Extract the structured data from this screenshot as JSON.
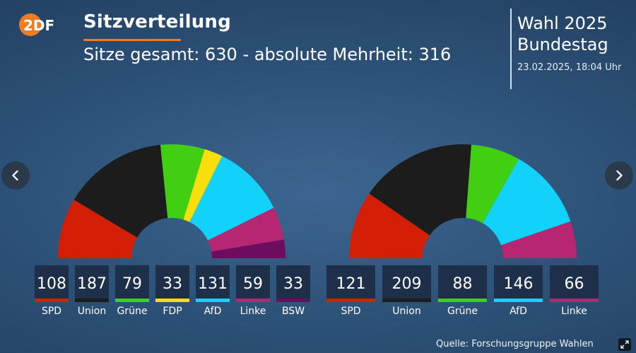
{
  "header": {
    "logo_text": "2DF",
    "title": "Sitzverteilung",
    "subtitle": "Sitze gesamt: 630 - absolute Mehrheit: 316",
    "election_line1": "Wahl 2025",
    "election_line2": "Bundestag",
    "timestamp": "23.02.2025, 18:04 Uhr"
  },
  "footer": {
    "source": "Quelle: Forschungsgruppe Wahlen"
  },
  "colors": {
    "SPD": "#d41f06",
    "Union": "#1c1c1c",
    "Grüne": "#41d011",
    "FDP": "#f8de0b",
    "AfD": "#12d2fa",
    "Linke": "#b62673",
    "BSW": "#6e0d5f",
    "accent": "#f07c22",
    "tile": "#1e3049"
  },
  "chart_data": [
    {
      "type": "pie",
      "variant": "parliament-semicircle",
      "total": 630,
      "categories": [
        "SPD",
        "Union",
        "Grüne",
        "FDP",
        "AfD",
        "Linke",
        "BSW"
      ],
      "values": [
        108,
        187,
        79,
        33,
        131,
        59,
        33
      ]
    },
    {
      "type": "pie",
      "variant": "parliament-semicircle",
      "total": 630,
      "categories": [
        "SPD",
        "Union",
        "Grüne",
        "AfD",
        "Linke"
      ],
      "values": [
        121,
        209,
        88,
        146,
        66
      ]
    }
  ]
}
